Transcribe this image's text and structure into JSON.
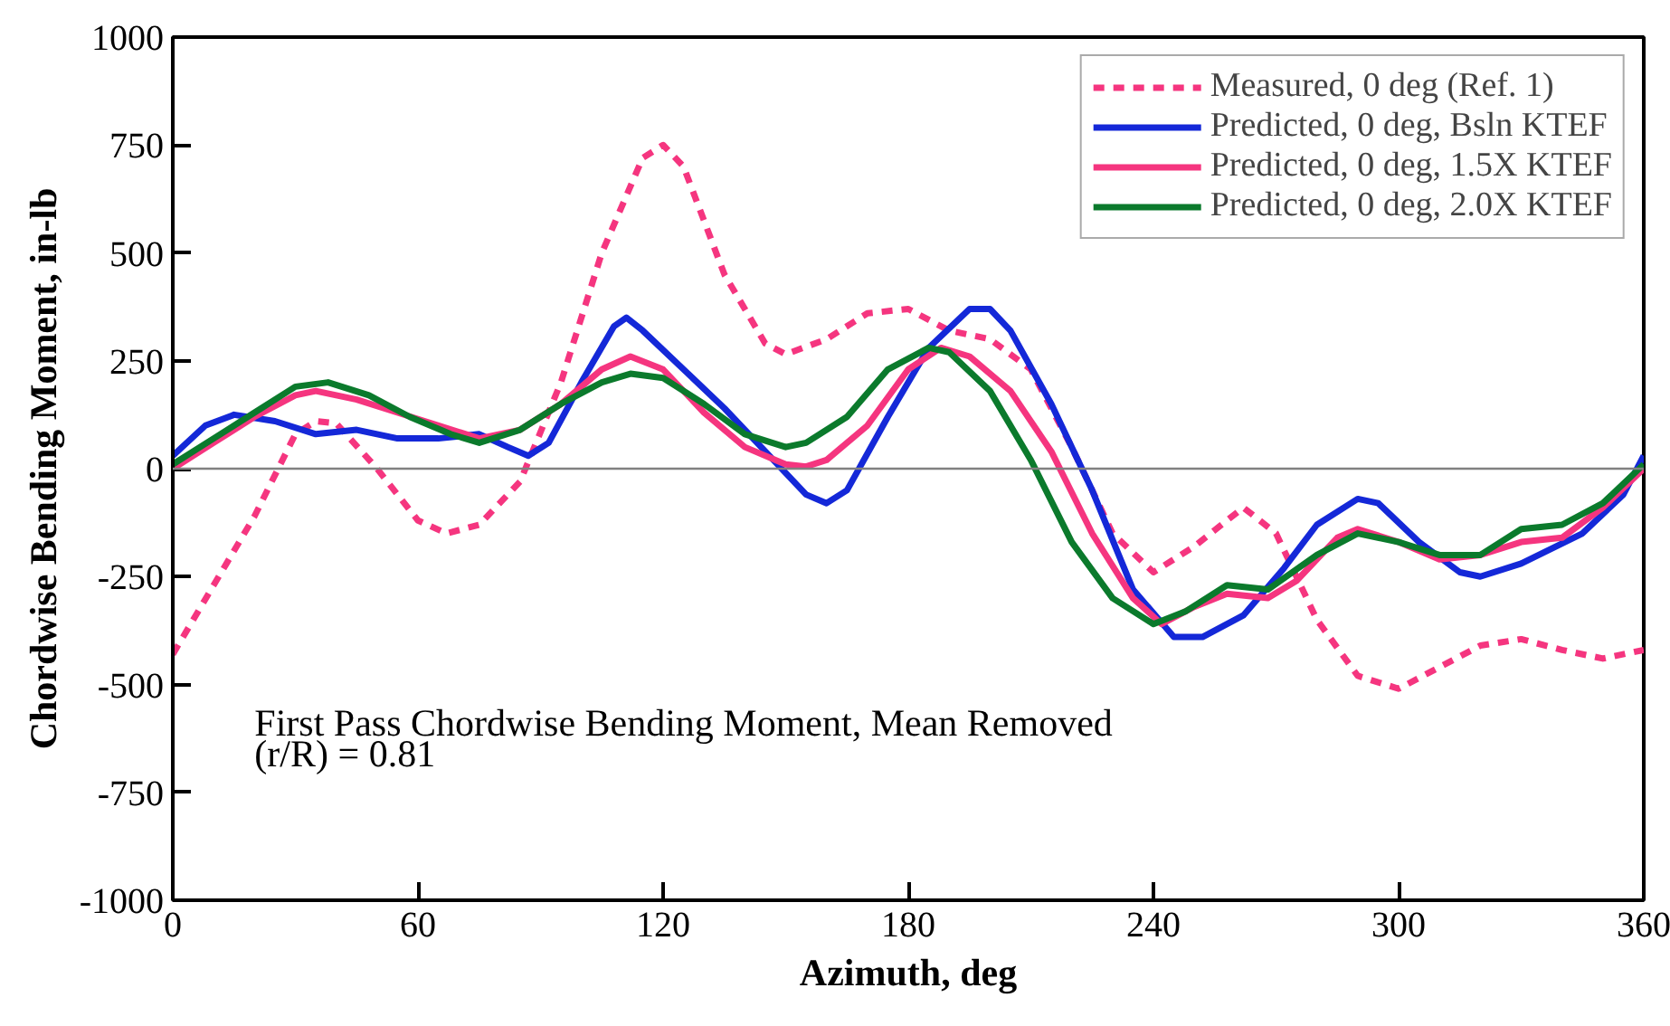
{
  "chart_data": {
    "type": "line",
    "xlabel": "Azimuth, deg",
    "ylabel": "Chordwise Bending Moment, in-lb",
    "xlim": [
      0,
      360
    ],
    "xticks": [
      0,
      60,
      120,
      180,
      240,
      300,
      360
    ],
    "ylim": [
      -1000,
      1000
    ],
    "yticks": [
      -1000,
      -750,
      -500,
      -250,
      0,
      250,
      500,
      750,
      1000
    ],
    "grid": false,
    "legend": "top right",
    "ref_lines": [
      {
        "axis": "y",
        "value": 0,
        "color": "#808080"
      }
    ],
    "annotations": [
      "First Pass Chordwise Bending Moment, Mean Removed",
      "(r/R) = 0.81"
    ],
    "series": [
      {
        "name": "Measured, 0 deg (Ref. 1)",
        "color": "#f5357f",
        "line_style": "dashed",
        "x": [
          0,
          10,
          20,
          30,
          35,
          40,
          50,
          60,
          67,
          75,
          85,
          95,
          105,
          115,
          120,
          125,
          135,
          145,
          150,
          160,
          170,
          180,
          190,
          200,
          210,
          220,
          230,
          240,
          250,
          262,
          270,
          280,
          290,
          300,
          310,
          320,
          330,
          340,
          350,
          360
        ],
        "values": [
          -430,
          -270,
          -110,
          80,
          110,
          105,
          0,
          -120,
          -150,
          -130,
          -30,
          200,
          500,
          720,
          750,
          700,
          450,
          290,
          265,
          300,
          360,
          370,
          320,
          300,
          230,
          50,
          -150,
          -240,
          -180,
          -90,
          -150,
          -350,
          -480,
          -510,
          -460,
          -410,
          -395,
          -420,
          -440,
          -420
        ]
      },
      {
        "name": "Predicted, 0 deg, Bsln KTEF",
        "color": "#1428d8",
        "line_style": "solid",
        "x": [
          0,
          8,
          15,
          25,
          35,
          45,
          55,
          65,
          75,
          82,
          87,
          92,
          100,
          108,
          111,
          115,
          125,
          135,
          145,
          155,
          160,
          165,
          175,
          185,
          195,
          200,
          205,
          215,
          225,
          235,
          245,
          252,
          262,
          272,
          280,
          290,
          295,
          305,
          315,
          320,
          330,
          345,
          355,
          360
        ],
        "values": [
          30,
          100,
          125,
          110,
          80,
          90,
          70,
          70,
          80,
          50,
          30,
          60,
          200,
          330,
          350,
          320,
          230,
          140,
          40,
          -60,
          -80,
          -50,
          120,
          280,
          370,
          370,
          320,
          150,
          -50,
          -280,
          -390,
          -390,
          -340,
          -230,
          -130,
          -70,
          -80,
          -170,
          -240,
          -250,
          -220,
          -150,
          -60,
          30
        ]
      },
      {
        "name": "Predicted, 0 deg, 1.5X KTEF",
        "color": "#f5357f",
        "line_style": "solid",
        "x": [
          0,
          10,
          20,
          30,
          35,
          45,
          55,
          65,
          75,
          85,
          95,
          105,
          112,
          120,
          130,
          140,
          150,
          155,
          160,
          170,
          180,
          188,
          195,
          205,
          215,
          225,
          235,
          242,
          250,
          258,
          268,
          275,
          285,
          290,
          300,
          310,
          320,
          330,
          340,
          350,
          360
        ],
        "values": [
          0,
          60,
          120,
          170,
          180,
          160,
          130,
          100,
          70,
          90,
          150,
          230,
          260,
          230,
          130,
          50,
          10,
          5,
          20,
          100,
          230,
          280,
          260,
          180,
          40,
          -150,
          -300,
          -360,
          -320,
          -290,
          -300,
          -260,
          -160,
          -140,
          -170,
          -210,
          -200,
          -170,
          -160,
          -90,
          0
        ]
      },
      {
        "name": "Predicted, 0 deg, 2.0X KTEF",
        "color": "#0b7a2c",
        "line_style": "solid",
        "x": [
          0,
          10,
          20,
          30,
          38,
          48,
          58,
          68,
          75,
          85,
          95,
          105,
          112,
          120,
          130,
          140,
          150,
          155,
          165,
          175,
          185,
          190,
          200,
          210,
          220,
          230,
          240,
          248,
          258,
          268,
          280,
          290,
          300,
          310,
          320,
          330,
          340,
          350,
          360
        ],
        "values": [
          10,
          70,
          130,
          190,
          200,
          170,
          120,
          80,
          60,
          90,
          150,
          200,
          220,
          210,
          150,
          80,
          50,
          60,
          120,
          230,
          280,
          270,
          180,
          20,
          -170,
          -300,
          -360,
          -330,
          -270,
          -280,
          -200,
          -150,
          -170,
          -200,
          -200,
          -140,
          -130,
          -80,
          10
        ]
      }
    ]
  }
}
